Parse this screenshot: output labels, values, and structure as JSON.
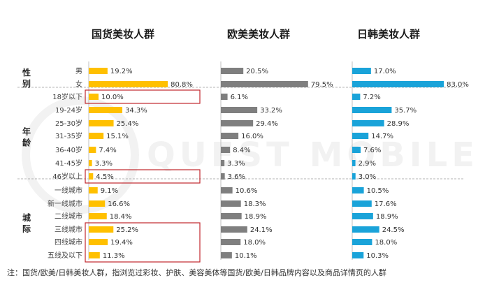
{
  "chart_data": {
    "type": "bar",
    "orientation": "horizontal",
    "groups": [
      {
        "name": "性别",
        "categories": [
          "男",
          "女"
        ]
      },
      {
        "name": "年龄",
        "categories": [
          "18岁以下",
          "19-24岁",
          "25-30岁",
          "31-35岁",
          "36-40岁",
          "41-45岁",
          "46岁以上"
        ]
      },
      {
        "name": "城际",
        "categories": [
          "一线城市",
          "新一线城市",
          "二线城市",
          "三线城市",
          "四线城市",
          "五线及以下"
        ]
      }
    ],
    "series": [
      {
        "name": "国货美妆人群",
        "color": "#FFC000",
        "values": [
          19.2,
          80.8,
          10.0,
          34.3,
          25.4,
          15.1,
          7.4,
          3.3,
          4.5,
          9.1,
          16.6,
          18.4,
          25.2,
          19.4,
          11.3
        ]
      },
      {
        "name": "欧美美妆人群",
        "color": "#7F7F7F",
        "values": [
          20.5,
          79.5,
          6.1,
          33.2,
          29.4,
          16.0,
          8.4,
          3.3,
          3.6,
          10.6,
          18.3,
          18.9,
          24.1,
          18.0,
          10.1
        ]
      },
      {
        "name": "日韩美妆人群",
        "color": "#1AA3D9",
        "values": [
          17.0,
          83.0,
          7.2,
          35.7,
          28.9,
          14.7,
          7.6,
          2.9,
          3.0,
          10.5,
          17.6,
          18.9,
          24.5,
          18.0,
          10.3
        ]
      }
    ],
    "unit": "%",
    "highlight": {
      "series": "国货美妆人群",
      "categories": [
        "18岁以下",
        "46岁以上",
        "三线城市",
        "四线城市",
        "五线及以下"
      ],
      "color": "#C0272D"
    },
    "watermark": "QUEST MOBILE"
  },
  "footnote": "注：国货/欧美/日韩美妆人群，指浏览过彩妆、护肤、美容美体等国货/欧美/日韩品牌内容以及商品详情页的人群"
}
